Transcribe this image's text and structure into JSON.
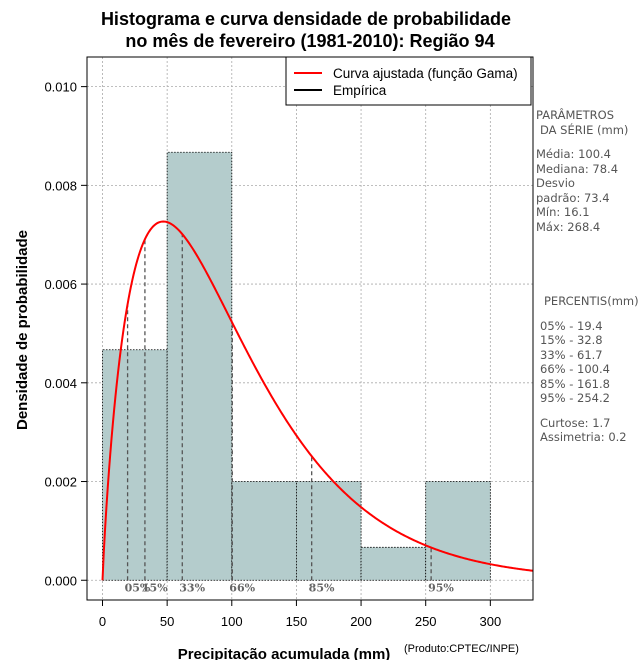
{
  "chart_data": {
    "type": "histogram",
    "title_line1": "Histograma e curva densidade de probabilidade",
    "title_line2": "no mês de fevereiro (1981-2010): Região 94",
    "xlabel": "Precipitação acumulada (mm)",
    "ylabel": "Densidade de probabilidade",
    "credit": "(Produto:CPTEC/INPE)",
    "xlim": [
      -12,
      333
    ],
    "ylim": [
      -0.0004,
      0.0106
    ],
    "x_ticks": [
      0,
      50,
      100,
      150,
      200,
      250,
      300
    ],
    "y_ticks": [
      0.0,
      0.002,
      0.004,
      0.006,
      0.008,
      0.01
    ],
    "y_tick_labels": [
      "0.000",
      "0.002",
      "0.004",
      "0.006",
      "0.008",
      "0.010"
    ],
    "bins": [
      {
        "from": 0,
        "to": 50,
        "density": 0.00467
      },
      {
        "from": 50,
        "to": 100,
        "density": 0.00867
      },
      {
        "from": 100,
        "to": 150,
        "density": 0.002
      },
      {
        "from": 150,
        "to": 200,
        "density": 0.002
      },
      {
        "from": 200,
        "to": 250,
        "density": 0.000667
      },
      {
        "from": 250,
        "to": 300,
        "density": 0.002
      }
    ],
    "gamma_fit": {
      "shape": 1.88,
      "scale": 53.4
    },
    "percentile_markers": [
      {
        "label": "05%",
        "value": 19.4
      },
      {
        "label": "15%",
        "value": 32.8
      },
      {
        "label": "33%",
        "value": 61.7
      },
      {
        "label": "66%",
        "value": 100.4
      },
      {
        "label": "85%",
        "value": 161.8
      },
      {
        "label": "95%",
        "value": 254.2
      }
    ],
    "legend": [
      {
        "name": "Curva ajustada (função Gama)",
        "color": "#ff0000"
      },
      {
        "name": "Empírica",
        "color": "#000000"
      }
    ],
    "legend_position": "top-right",
    "grid": true,
    "colors": {
      "bars": "#b4cccc",
      "curve": "#ff0000",
      "markers": "#555555",
      "grid": "#aaaaaa"
    }
  },
  "panel": {
    "params_title_1": "PARÂMETROS",
    "params_title_2": "DA SÉRIE (mm)",
    "media": "Média:  100.4",
    "mediana": "Mediana:  78.4",
    "desvio_1": "Desvio",
    "desvio_2": "padrão:  73.4",
    "min": "Mín:  16.1",
    "max": "Máx:  268.4",
    "percentis_title": "PERCENTIS(mm)",
    "p05": "05% -  19.4",
    "p15": "15% -  32.8",
    "p33": "33% -  61.7",
    "p66": "66% -  100.4",
    "p85": "85% -  161.8",
    "p95": "95% -  254.2",
    "curtose": "Curtose:  1.7",
    "assimetria": "Assimetria:  0.2"
  }
}
